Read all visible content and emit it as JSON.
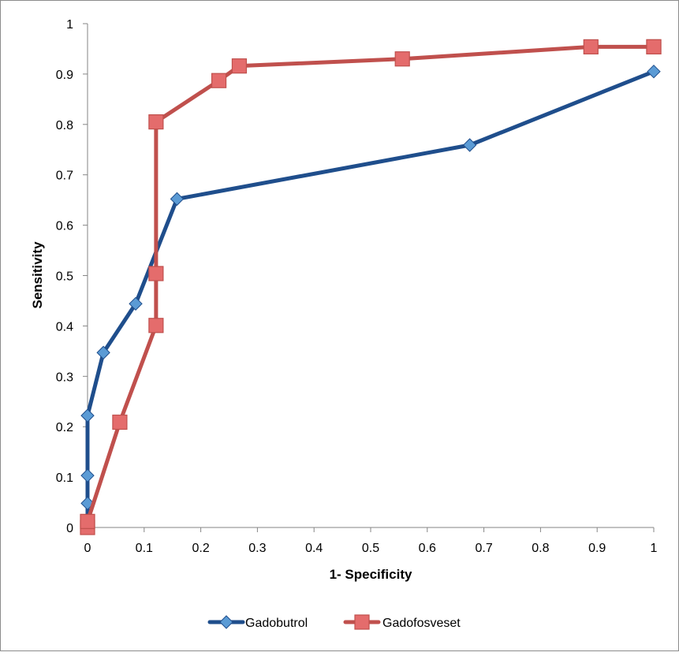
{
  "chart_data": {
    "type": "line",
    "title": "",
    "xlabel": "1- Specificity",
    "ylabel": "Sensitivity",
    "xlim": [
      0,
      1
    ],
    "ylim": [
      0,
      1
    ],
    "x_ticks": [
      0,
      0.1,
      0.2,
      0.3,
      0.4,
      0.5,
      0.6,
      0.7,
      0.8,
      0.9,
      1
    ],
    "x_tick_labels": [
      "0",
      "0.1",
      "0.2",
      "0.3",
      "0.4",
      "0.5",
      "0.6",
      "0.7",
      "0.8",
      "0.9",
      "1"
    ],
    "y_ticks": [
      0,
      0.1,
      0.2,
      0.3,
      0.4,
      0.5,
      0.6,
      0.7,
      0.8,
      0.9,
      1
    ],
    "y_tick_labels": [
      "0",
      "0.1",
      "0.2",
      "0.3",
      "0.4",
      "0.5",
      "0.6",
      "0.7",
      "0.8",
      "0.9",
      "1"
    ],
    "grid": false,
    "legend_position": "bottom",
    "series": [
      {
        "name": "Gadobutrol",
        "color": "#1f4e8c",
        "marker_color": "#5b9bd5",
        "marker": "diamond",
        "x": [
          0,
          0,
          0,
          0,
          0.028,
          0.085,
          0.158,
          0.675,
          1
        ],
        "y": [
          0,
          0.048,
          0.103,
          0.222,
          0.347,
          0.444,
          0.652,
          0.759,
          0.905
        ]
      },
      {
        "name": "Gadofosveset",
        "color": "#c0504d",
        "marker_color": "#e46c6c",
        "marker": "square",
        "x": [
          0,
          0,
          0.057,
          0.121,
          0.121,
          0.121,
          0.232,
          0.268,
          0.556,
          0.889,
          1,
          1
        ],
        "y": [
          0,
          0.012,
          0.209,
          0.401,
          0.504,
          0.805,
          0.887,
          0.916,
          0.93,
          0.954,
          0.954,
          0.954
        ]
      }
    ]
  }
}
